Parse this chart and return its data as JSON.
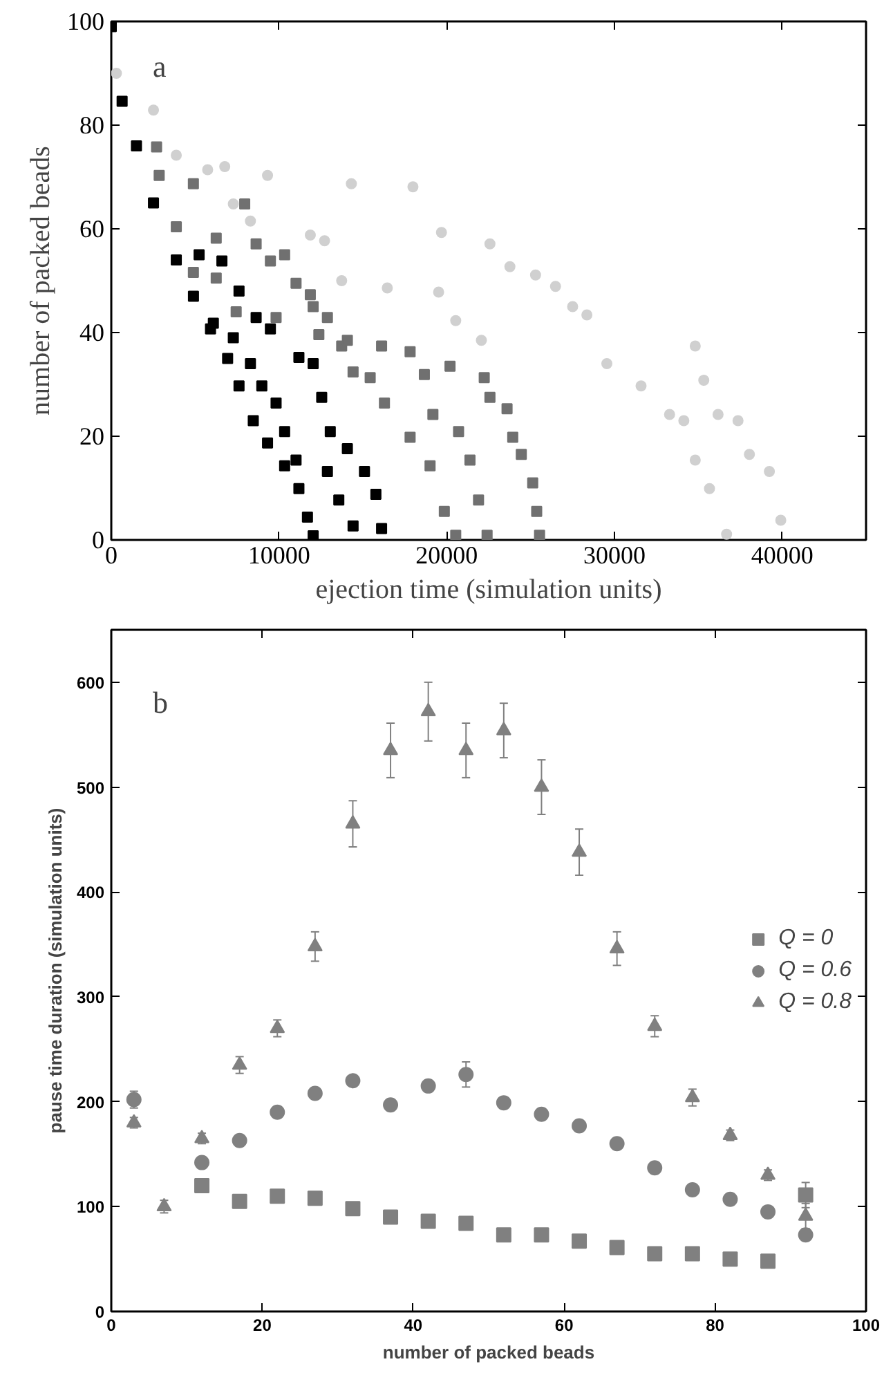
{
  "chart_data": [
    {
      "type": "scatter",
      "xlabel": "ejection time (simulation units)",
      "ylabel": "number of packed beads",
      "annotations": [
        "a"
      ],
      "xlim": [
        0,
        45000
      ],
      "xticks": [
        0,
        10000,
        20000,
        30000,
        40000
      ],
      "ylim": [
        0,
        100
      ],
      "yticks": [
        0,
        20,
        40,
        60,
        80,
        100
      ],
      "grid": false,
      "legend": false,
      "series": [
        {
          "color": "#000000",
          "marker": "square",
          "x": [
            0,
            646,
            1500,
            2516,
            3876,
            4900,
            5916,
            6936,
            7616,
            8466,
            9316,
            10336,
            11186,
            11696,
            12036,
            5236,
            6086,
            7276,
            8296,
            8976,
            9826,
            10336,
            11016,
            12886,
            13566,
            14416,
            6596,
            7616,
            8636,
            9486,
            11186,
            12036,
            12546,
            13056,
            14076,
            15096,
            15776,
            16116
          ],
          "values": [
            99,
            84.6,
            76,
            65,
            54,
            47,
            40.7,
            35,
            29.7,
            23,
            18.7,
            14.3,
            9.9,
            4.4,
            0.8,
            55,
            41.8,
            39,
            34,
            29.7,
            26.4,
            20.9,
            15.4,
            13.2,
            7.7,
            2.7,
            53.8,
            48,
            42.9,
            40.7,
            35.2,
            34,
            27.5,
            20.9,
            17.6,
            13.2,
            8.8,
            2.2
          ]
        },
        {
          "color": "#707070",
          "marker": "square",
          "x": [
            2700,
            2856,
            3876,
            4896,
            6256,
            7446,
            9826,
            15436,
            16286,
            17816,
            19006,
            19856,
            20536,
            4896,
            6256,
            7956,
            8636,
            9486,
            11016,
            12036,
            12376,
            13736,
            16116,
            17816,
            18666,
            19176,
            20706,
            21386,
            21896,
            22406,
            10336,
            11866,
            12886,
            14076,
            14416,
            20196,
            22236,
            22576,
            23596,
            23936,
            24446,
            25126,
            25364,
            25534
          ],
          "values": [
            75.8,
            70.3,
            60.4,
            51.6,
            50.5,
            44,
            42.9,
            31.3,
            26.4,
            19.8,
            14.3,
            5.5,
            0.9,
            68.7,
            58.2,
            64.8,
            57.1,
            53.8,
            49.5,
            45,
            39.6,
            37.4,
            37.4,
            36.3,
            31.9,
            24.2,
            20.9,
            15.4,
            7.7,
            0.9,
            55,
            47.3,
            42.9,
            38.5,
            32.4,
            33.5,
            31.3,
            27.5,
            25.3,
            19.8,
            16.5,
            11,
            5.5,
            0.9
          ]
        },
        {
          "color": "#d0d0d0",
          "marker": "circle",
          "x": [
            306,
            2516,
            3876,
            5746,
            6766,
            7276,
            8296,
            9316,
            11866,
            12716,
            13736,
            16456,
            19516,
            20536,
            22066,
            34816,
            35326,
            36176,
            34136,
            34816,
            35666,
            36686,
            14314,
            17986,
            19686,
            22576,
            23766,
            25296,
            26486,
            27506,
            28356,
            29546,
            31586,
            33286,
            37366,
            38046,
            39236,
            39916
          ],
          "values": [
            90,
            82.9,
            74.2,
            71.4,
            72,
            64.8,
            61.5,
            70.3,
            58.8,
            57.7,
            50,
            48.6,
            47.8,
            42.3,
            38.5,
            37.4,
            30.8,
            24.2,
            23,
            15.4,
            9.9,
            1.1,
            68.7,
            68.1,
            59.3,
            57.1,
            52.7,
            51.1,
            48.9,
            45,
            43.4,
            34,
            29.7,
            24.2,
            23,
            16.5,
            13.2,
            3.8
          ]
        }
      ]
    },
    {
      "type": "scatter",
      "xlabel": "number of packed beads",
      "ylabel": "pause time duration (simulation units)",
      "annotations": [
        "b"
      ],
      "xlim": [
        0,
        100
      ],
      "xticks": [
        0,
        20,
        40,
        60,
        80,
        100
      ],
      "ylim": [
        0,
        650
      ],
      "yticks": [
        0,
        100,
        200,
        300,
        400,
        500,
        600
      ],
      "grid": false,
      "legend": "right",
      "series": [
        {
          "name": "Q = 0",
          "color": "#808080",
          "marker": "square",
          "x": [
            12,
            17,
            22,
            27,
            32,
            37,
            42,
            47,
            52,
            57,
            62,
            67,
            72,
            77,
            82,
            87,
            92
          ],
          "values": [
            120,
            105,
            110,
            108,
            98,
            90,
            86,
            84,
            73,
            73,
            67,
            61,
            55,
            55,
            50,
            48,
            111
          ],
          "errors": [
            null,
            null,
            null,
            null,
            null,
            null,
            null,
            null,
            null,
            null,
            null,
            null,
            null,
            null,
            null,
            null,
            12
          ]
        },
        {
          "name": "Q = 0.6",
          "color": "#808080",
          "marker": "circle",
          "x": [
            3,
            12,
            17,
            22,
            27,
            32,
            37,
            42,
            47,
            52,
            57,
            62,
            67,
            72,
            77,
            82,
            87,
            92
          ],
          "values": [
            202,
            142,
            163,
            190,
            208,
            220,
            197,
            215,
            226,
            199,
            188,
            177,
            160,
            137,
            116,
            107,
            95,
            73
          ],
          "errors": [
            8,
            null,
            null,
            null,
            null,
            null,
            null,
            null,
            12,
            null,
            null,
            null,
            null,
            null,
            null,
            null,
            null,
            null
          ]
        },
        {
          "name": "Q = 0.8",
          "color": "#808080",
          "marker": "triangle",
          "x": [
            3,
            7,
            12,
            17,
            22,
            27,
            32,
            37,
            42,
            47,
            52,
            57,
            62,
            67,
            72,
            77,
            82,
            87,
            92
          ],
          "values": [
            180,
            100,
            165,
            235,
            270,
            348,
            465,
            535,
            572,
            535,
            554,
            500,
            438,
            346,
            272,
            204,
            168,
            130,
            91
          ],
          "errors": [
            5,
            6,
            5,
            8,
            8,
            14,
            22,
            26,
            28,
            26,
            26,
            26,
            22,
            16,
            10,
            8,
            5,
            5,
            12
          ]
        }
      ]
    }
  ]
}
